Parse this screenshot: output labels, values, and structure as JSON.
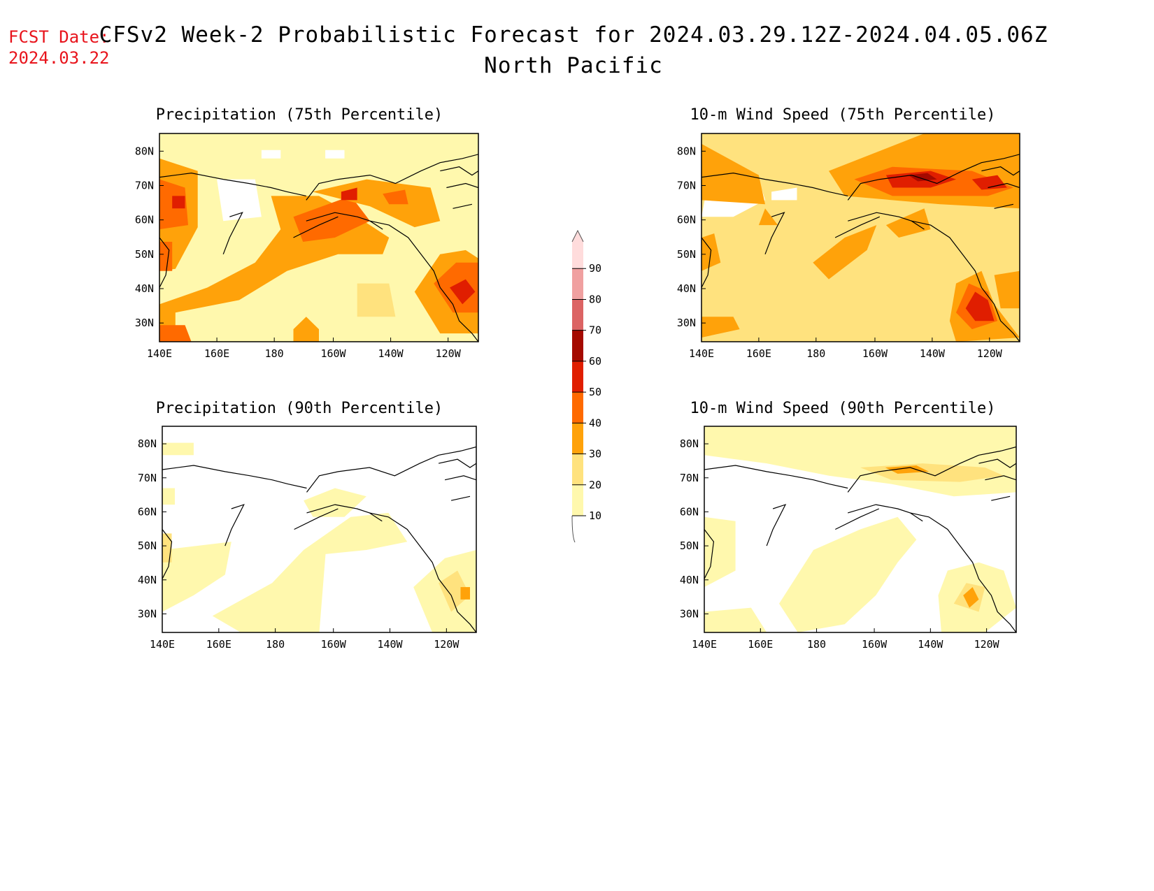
{
  "forecast_date": {
    "label": "FCST Date:",
    "value": "2024.03.22"
  },
  "title": {
    "line1": "CFSv2 Week-2 Probabilistic Forecast for 2024.03.29.12Z-2024.04.05.06Z",
    "line2": "North Pacific"
  },
  "panels": [
    {
      "id": "precip75",
      "title": "Precipitation (75th Percentile)"
    },
    {
      "id": "wind75",
      "title": "10-m Wind Speed (75th Percentile)"
    },
    {
      "id": "precip90",
      "title": "Precipitation (90th Percentile)"
    },
    {
      "id": "wind90",
      "title": "10-m Wind Speed (90th Percentile)"
    }
  ],
  "axes": {
    "lat_labels": [
      "80N",
      "70N",
      "60N",
      "50N",
      "40N",
      "30N"
    ],
    "lon_labels": [
      "140E",
      "160E",
      "180",
      "160W",
      "140W",
      "120W"
    ]
  },
  "colorbar": {
    "levels": [
      "10",
      "20",
      "30",
      "40",
      "50",
      "60",
      "70",
      "80",
      "90"
    ],
    "colors": [
      "#fff8ad",
      "#ffe27e",
      "#ffa20a",
      "#ff6a00",
      "#e01e00",
      "#a50a00",
      "#dc6464",
      "#f0a0a0",
      "#ffdcdc"
    ]
  }
}
